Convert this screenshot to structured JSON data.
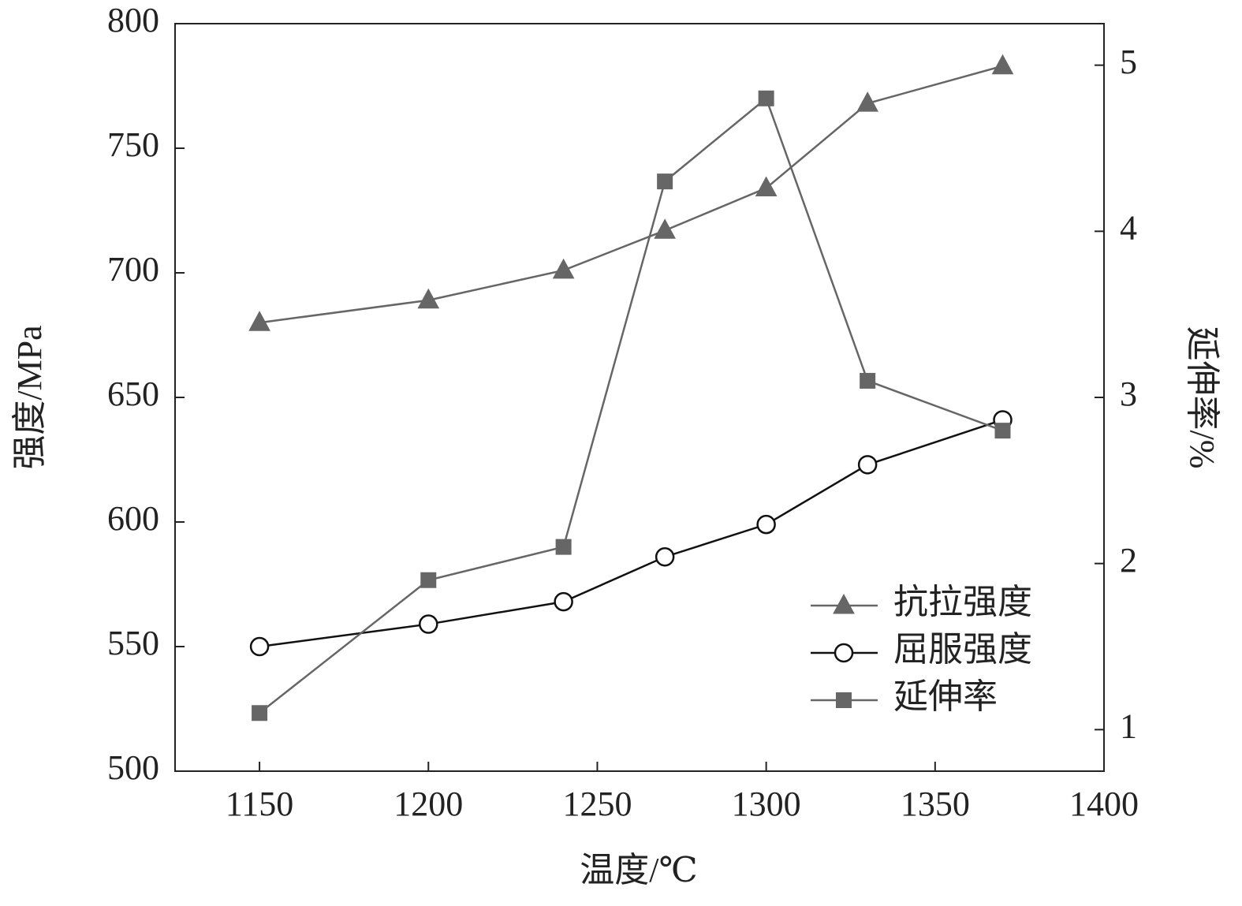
{
  "chart_data": {
    "type": "line",
    "x_label": "温度/℃",
    "y_label": "强度/MPa",
    "y2_label": "延伸率/%",
    "x": [
      1150,
      1200,
      1240,
      1270,
      1300,
      1330,
      1370
    ],
    "series": [
      {
        "name": "抗拉强度",
        "color": "#666666",
        "marker": "triangle",
        "values": [
          680,
          689,
          701,
          717,
          734,
          768,
          783
        ]
      },
      {
        "name": "屈服强度",
        "color": "#111111",
        "marker": "circle",
        "values": [
          550,
          559,
          568,
          586,
          599,
          623,
          641
        ]
      },
      {
        "name": "延伸率",
        "color": "#666666",
        "marker": "square",
        "axis": "y2",
        "values": [
          1.1,
          1.9,
          2.1,
          4.3,
          4.8,
          3.1,
          2.8
        ]
      }
    ],
    "xlim": [
      1125,
      1400
    ],
    "xticks": [
      1150,
      1200,
      1250,
      1300,
      1350,
      1400
    ],
    "ylim": [
      500,
      800
    ],
    "yticks": [
      500,
      550,
      600,
      650,
      700,
      750,
      800
    ],
    "y2lim": [
      0.75,
      5.25
    ],
    "y2ticks": [
      1,
      2,
      3,
      4,
      5
    ],
    "legend": "lower right",
    "grid": false
  }
}
